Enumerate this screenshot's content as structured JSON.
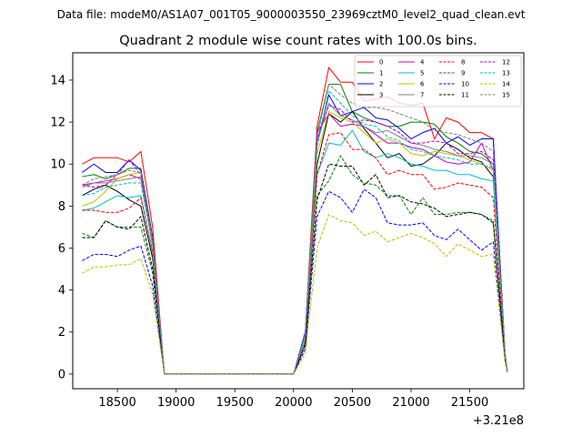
{
  "suptitle": "Data file: modeM0/AS1A07_001T05_9000003550_23969cztM0_level2_quad_clean.evt",
  "chart_data": {
    "type": "line",
    "title": "Quadrant 2 module wise count rates with 100.0s bins.",
    "xlabel": "",
    "ylabel": "",
    "x_offset_label": "+3.21e8",
    "xlim": [
      18120,
      21960
    ],
    "ylim": [
      -0.7,
      15.3
    ],
    "xticks": [
      18500,
      19000,
      19500,
      20000,
      20500,
      21000,
      21500
    ],
    "yticks": [
      0,
      2,
      4,
      6,
      8,
      10,
      12,
      14
    ],
    "x": [
      18200,
      18300,
      18400,
      18500,
      18600,
      18700,
      18800,
      18900,
      19000,
      19100,
      19200,
      19300,
      19400,
      19500,
      19600,
      19700,
      19800,
      19900,
      20000,
      20100,
      20200,
      20300,
      20400,
      20500,
      20600,
      20700,
      20800,
      20900,
      21000,
      21100,
      21200,
      21300,
      21400,
      21500,
      21600,
      21700,
      21800,
      21820
    ],
    "legend_position": "upper right",
    "series": [
      {
        "name": "0",
        "color": "#ff0000",
        "dash": "solid",
        "values": [
          10.0,
          10.3,
          10.3,
          10.3,
          10.1,
          10.6,
          7.0,
          0,
          0,
          0,
          0,
          0,
          0,
          0,
          0,
          0,
          0,
          0,
          0,
          2.0,
          11.8,
          14.6,
          13.9,
          13.9,
          13.0,
          13.1,
          13.2,
          12.9,
          12.8,
          12.9,
          11.2,
          12.2,
          12.0,
          11.5,
          11.5,
          11.2,
          1.0,
          0.1
        ]
      },
      {
        "name": "1",
        "color": "#008000",
        "dash": "solid",
        "values": [
          9.4,
          9.5,
          9.3,
          9.5,
          9.8,
          9.8,
          6.5,
          0,
          0,
          0,
          0,
          0,
          0,
          0,
          0,
          0,
          0,
          0,
          0,
          2.0,
          11.5,
          13.8,
          13.8,
          12.5,
          12.2,
          12.0,
          11.8,
          11.8,
          12.0,
          12.0,
          11.9,
          11.3,
          11.0,
          10.6,
          10.5,
          10.0,
          1.0,
          0.1
        ]
      },
      {
        "name": "2",
        "color": "#0000ff",
        "dash": "solid",
        "values": [
          9.6,
          10.0,
          9.6,
          9.6,
          10.2,
          9.7,
          6.5,
          0,
          0,
          0,
          0,
          0,
          0,
          0,
          0,
          0,
          0,
          0,
          0,
          2.0,
          11.0,
          13.3,
          12.3,
          12.5,
          12.7,
          12.2,
          12.1,
          11.7,
          11.2,
          11.5,
          11.7,
          11.0,
          11.3,
          10.9,
          11.2,
          11.2,
          1.0,
          0.1
        ]
      },
      {
        "name": "3",
        "color": "#000000",
        "dash": "solid",
        "values": [
          8.5,
          8.8,
          9.0,
          8.7,
          8.3,
          8.0,
          5.5,
          0,
          0,
          0,
          0,
          0,
          0,
          0,
          0,
          0,
          0,
          0,
          0,
          1.8,
          10.0,
          12.4,
          12.0,
          12.5,
          11.7,
          11.0,
          10.3,
          10.5,
          9.9,
          10.0,
          10.4,
          11.0,
          10.7,
          10.3,
          10.1,
          9.4,
          1.0,
          0.1
        ]
      },
      {
        "name": "4",
        "color": "#c000c0",
        "dash": "solid",
        "values": [
          9.0,
          9.1,
          9.2,
          9.3,
          9.5,
          9.3,
          6.2,
          0,
          0,
          0,
          0,
          0,
          0,
          0,
          0,
          0,
          0,
          0,
          0,
          1.8,
          11.5,
          12.4,
          11.8,
          11.9,
          11.8,
          11.4,
          11.0,
          11.0,
          10.8,
          10.7,
          10.4,
          10.1,
          10.0,
          10.1,
          11.0,
          9.7,
          1.0,
          0.1
        ]
      },
      {
        "name": "5",
        "color": "#00bfbf",
        "dash": "solid",
        "values": [
          7.8,
          7.9,
          8.2,
          8.5,
          8.4,
          8.5,
          5.7,
          0,
          0,
          0,
          0,
          0,
          0,
          0,
          0,
          0,
          0,
          0,
          0,
          1.6,
          9.5,
          11.0,
          10.9,
          11.6,
          10.6,
          10.3,
          10.5,
          10.3,
          10.0,
          9.9,
          9.7,
          9.7,
          9.5,
          9.5,
          9.3,
          9.2,
          0.9,
          0.1
        ]
      },
      {
        "name": "6",
        "color": "#bfbf00",
        "dash": "solid",
        "values": [
          8.0,
          8.2,
          8.7,
          9.3,
          9.5,
          9.6,
          6.0,
          0,
          0,
          0,
          0,
          0,
          0,
          0,
          0,
          0,
          0,
          0,
          0,
          1.8,
          10.5,
          12.5,
          12.2,
          12.0,
          11.5,
          11.0,
          11.2,
          11.0,
          10.5,
          10.4,
          10.6,
          10.5,
          10.4,
          10.2,
          10.0,
          9.7,
          1.0,
          0.1
        ]
      },
      {
        "name": "7",
        "color": "#808080",
        "dash": "solid",
        "values": [
          8.9,
          9.1,
          9.1,
          9.2,
          9.3,
          9.4,
          6.3,
          0,
          0,
          0,
          0,
          0,
          0,
          0,
          0,
          0,
          0,
          0,
          0,
          1.9,
          11.0,
          12.9,
          12.3,
          12.1,
          11.8,
          11.5,
          11.6,
          11.3,
          11.0,
          10.9,
          10.7,
          10.6,
          10.4,
          10.4,
          10.3,
          10.0,
          1.0,
          0.1
        ]
      },
      {
        "name": "8",
        "color": "#ff0000",
        "dash": "dashed",
        "values": [
          7.8,
          7.8,
          7.7,
          7.7,
          7.9,
          8.4,
          5.8,
          0,
          0,
          0,
          0,
          0,
          0,
          0,
          0,
          0,
          0,
          0,
          0,
          1.5,
          9.5,
          11.4,
          11.5,
          10.7,
          10.7,
          10.3,
          9.5,
          9.7,
          9.5,
          9.5,
          8.8,
          8.9,
          9.1,
          9.0,
          8.9,
          8.4,
          0.8,
          0.1
        ]
      },
      {
        "name": "9",
        "color": "#008000",
        "dash": "dashed",
        "values": [
          6.7,
          6.5,
          7.3,
          7.0,
          7.0,
          7.0,
          4.8,
          0,
          0,
          0,
          0,
          0,
          0,
          0,
          0,
          0,
          0,
          0,
          0,
          1.4,
          8.5,
          9.2,
          10.4,
          9.5,
          9.1,
          9.0,
          8.5,
          8.5,
          7.6,
          8.4,
          7.6,
          7.6,
          7.7,
          7.7,
          7.6,
          7.3,
          0.7,
          0.1
        ]
      },
      {
        "name": "10",
        "color": "#0000ff",
        "dash": "dashed",
        "values": [
          5.4,
          5.7,
          5.7,
          5.6,
          5.9,
          6.1,
          4.2,
          0,
          0,
          0,
          0,
          0,
          0,
          0,
          0,
          0,
          0,
          0,
          0,
          1.2,
          7.5,
          8.7,
          8.4,
          7.7,
          8.8,
          8.4,
          7.2,
          7.1,
          7.1,
          7.2,
          6.6,
          6.4,
          6.9,
          6.4,
          5.9,
          6.3,
          0.6,
          0.1
        ]
      },
      {
        "name": "11",
        "color": "#000000",
        "dash": "dashed",
        "values": [
          6.5,
          6.5,
          7.3,
          7.0,
          6.9,
          7.5,
          5.0,
          0,
          0,
          0,
          0,
          0,
          0,
          0,
          0,
          0,
          0,
          0,
          0,
          1.4,
          8.3,
          10.0,
          9.9,
          9.9,
          9.0,
          9.5,
          8.4,
          8.5,
          8.2,
          8.1,
          7.9,
          7.5,
          7.6,
          7.7,
          7.6,
          7.2,
          0.7,
          0.1
        ]
      },
      {
        "name": "12",
        "color": "#c000c0",
        "dash": "dashed",
        "values": [
          9.0,
          8.9,
          9.0,
          9.5,
          10.2,
          9.5,
          6.4,
          0,
          0,
          0,
          0,
          0,
          0,
          0,
          0,
          0,
          0,
          0,
          0,
          1.9,
          11.2,
          12.8,
          12.6,
          12.0,
          12.1,
          12.0,
          11.8,
          11.5,
          11.0,
          11.0,
          11.1,
          11.0,
          10.5,
          10.5,
          10.6,
          10.2,
          1.0,
          0.1
        ]
      },
      {
        "name": "13",
        "color": "#00bfbf",
        "dash": "dashed",
        "values": [
          8.5,
          8.6,
          8.9,
          9.0,
          9.1,
          9.1,
          6.1,
          0,
          0,
          0,
          0,
          0,
          0,
          0,
          0,
          0,
          0,
          0,
          0,
          1.8,
          10.8,
          13.5,
          12.9,
          12.3,
          11.9,
          11.8,
          11.3,
          11.1,
          10.7,
          10.6,
          10.4,
          10.3,
          10.2,
          10.0,
          10.0,
          9.8,
          1.0,
          0.1
        ]
      },
      {
        "name": "14",
        "color": "#bfbf00",
        "dash": "dashed",
        "values": [
          4.8,
          5.1,
          5.1,
          5.2,
          5.2,
          5.5,
          3.8,
          0,
          0,
          0,
          0,
          0,
          0,
          0,
          0,
          0,
          0,
          0,
          0,
          1.0,
          6.0,
          7.6,
          7.3,
          7.2,
          6.6,
          6.8,
          6.3,
          6.5,
          6.7,
          6.5,
          6.2,
          5.6,
          6.2,
          5.9,
          5.6,
          5.7,
          0.6,
          0.1
        ]
      },
      {
        "name": "15",
        "color": "#808080",
        "dash": "dashed",
        "values": [
          9.0,
          9.3,
          9.4,
          9.5,
          9.7,
          9.6,
          6.4,
          0,
          0,
          0,
          0,
          0,
          0,
          0,
          0,
          0,
          0,
          0,
          0,
          1.9,
          11.3,
          13.8,
          13.3,
          12.9,
          12.7,
          12.7,
          12.6,
          12.4,
          12.2,
          12.0,
          11.6,
          11.5,
          11.4,
          11.2,
          11.0,
          10.6,
          1.0,
          0.1
        ]
      }
    ]
  }
}
